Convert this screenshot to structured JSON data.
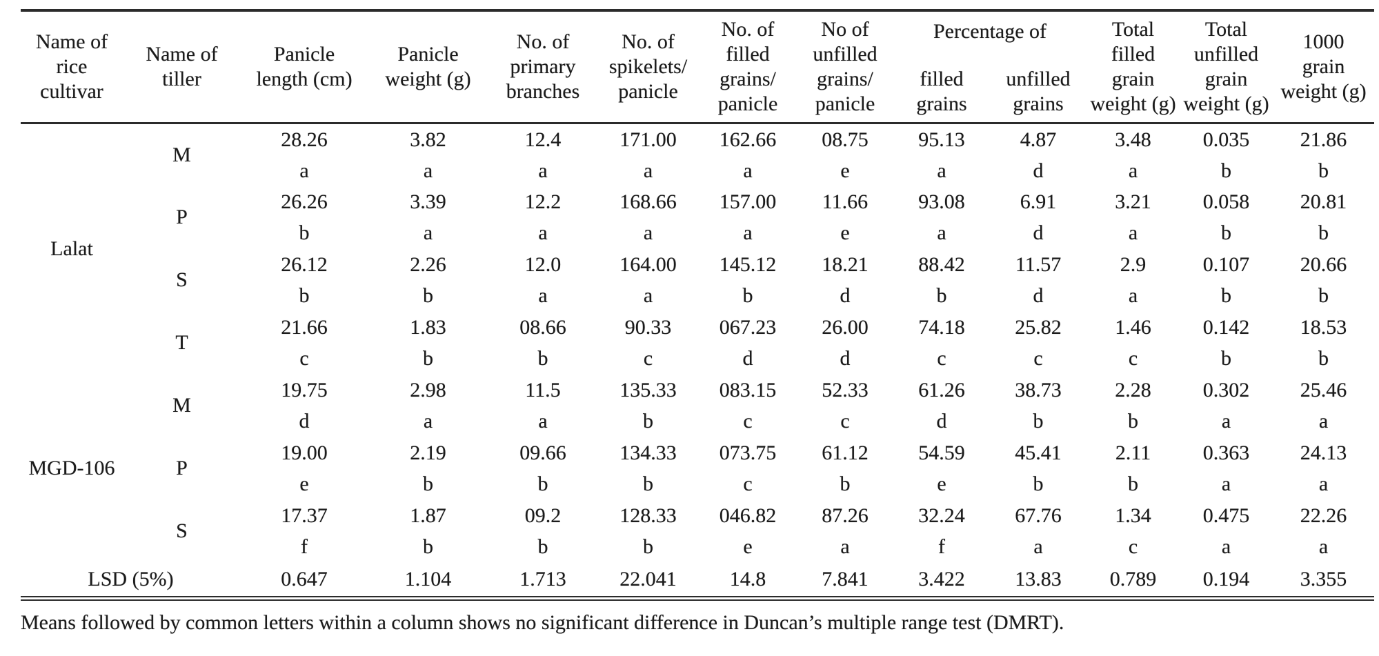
{
  "page": {
    "background_color": "#ffffff",
    "text_color": "#1b1b1b",
    "rule_color": "#2b2b2b"
  },
  "table": {
    "headers": [
      "Name of\nrice\ncultivar",
      "Name of\ntiller",
      "Panicle\nlength (cm)",
      "Panicle\nweight (g)",
      "No. of\nprimary\nbranches",
      "No. of\nspikelets/\npanicle",
      "No. of\nfilled\ngrains/\npanicle",
      "No of\nunfilled\ngrains/\npanicle"
    ],
    "group_header": {
      "label": "Percentage of",
      "subs": [
        "filled\ngrains",
        "unfilled\ngrains"
      ]
    },
    "tail_headers": [
      "Total\nfilled\ngrain\nweight (g)",
      "Total\nunfilled\ngrain\nweight (g)",
      "1000\ngrain\nweight (g)"
    ],
    "groups": [
      {
        "cultivar": "Lalat",
        "rows": [
          {
            "tiller": "M",
            "cells": [
              {
                "v": "28.26",
                "l": "a"
              },
              {
                "v": "3.82",
                "l": "a"
              },
              {
                "v": "12.4",
                "l": "a"
              },
              {
                "v": "171.00",
                "l": "a"
              },
              {
                "v": "162.66",
                "l": "a"
              },
              {
                "v": "08.75",
                "l": "e"
              },
              {
                "v": "95.13",
                "l": "a"
              },
              {
                "v": "4.87",
                "l": "d"
              },
              {
                "v": "3.48",
                "l": "a"
              },
              {
                "v": "0.035",
                "l": "b"
              },
              {
                "v": "21.86",
                "l": "b"
              }
            ]
          },
          {
            "tiller": "P",
            "cells": [
              {
                "v": "26.26",
                "l": "b"
              },
              {
                "v": "3.39",
                "l": "a"
              },
              {
                "v": "12.2",
                "l": "a"
              },
              {
                "v": "168.66",
                "l": "a"
              },
              {
                "v": "157.00",
                "l": "a"
              },
              {
                "v": "11.66",
                "l": "e"
              },
              {
                "v": "93.08",
                "l": "a"
              },
              {
                "v": "6.91",
                "l": "d"
              },
              {
                "v": "3.21",
                "l": "a"
              },
              {
                "v": "0.058",
                "l": "b"
              },
              {
                "v": "20.81",
                "l": "b"
              }
            ]
          },
          {
            "tiller": "S",
            "cells": [
              {
                "v": "26.12",
                "l": "b"
              },
              {
                "v": "2.26",
                "l": "b"
              },
              {
                "v": "12.0",
                "l": "a"
              },
              {
                "v": "164.00",
                "l": "a"
              },
              {
                "v": "145.12",
                "l": "b"
              },
              {
                "v": "18.21",
                "l": "d"
              },
              {
                "v": "88.42",
                "l": "b"
              },
              {
                "v": "11.57",
                "l": "d"
              },
              {
                "v": "2.9",
                "l": "a"
              },
              {
                "v": "0.107",
                "l": "b"
              },
              {
                "v": "20.66",
                "l": "b"
              }
            ]
          },
          {
            "tiller": "T",
            "cells": [
              {
                "v": "21.66",
                "l": "c"
              },
              {
                "v": "1.83",
                "l": "b"
              },
              {
                "v": "08.66",
                "l": "b"
              },
              {
                "v": "90.33",
                "l": "c"
              },
              {
                "v": "067.23",
                "l": "d"
              },
              {
                "v": "26.00",
                "l": "d"
              },
              {
                "v": "74.18",
                "l": "c"
              },
              {
                "v": "25.82",
                "l": "c"
              },
              {
                "v": "1.46",
                "l": "c"
              },
              {
                "v": "0.142",
                "l": "b"
              },
              {
                "v": "18.53",
                "l": "b"
              }
            ]
          }
        ]
      },
      {
        "cultivar": "MGD-106",
        "rows": [
          {
            "tiller": "M",
            "cells": [
              {
                "v": "19.75",
                "l": "d"
              },
              {
                "v": "2.98",
                "l": "a"
              },
              {
                "v": "11.5",
                "l": "a"
              },
              {
                "v": "135.33",
                "l": "b"
              },
              {
                "v": "083.15",
                "l": "c"
              },
              {
                "v": "52.33",
                "l": "c"
              },
              {
                "v": "61.26",
                "l": "d"
              },
              {
                "v": "38.73",
                "l": "b"
              },
              {
                "v": "2.28",
                "l": "b"
              },
              {
                "v": "0.302",
                "l": "a"
              },
              {
                "v": "25.46",
                "l": "a"
              }
            ]
          },
          {
            "tiller": "P",
            "cells": [
              {
                "v": "19.00",
                "l": "e"
              },
              {
                "v": "2.19",
                "l": "b"
              },
              {
                "v": "09.66",
                "l": "b"
              },
              {
                "v": "134.33",
                "l": "b"
              },
              {
                "v": "073.75",
                "l": "c"
              },
              {
                "v": "61.12",
                "l": "b"
              },
              {
                "v": "54.59",
                "l": "e"
              },
              {
                "v": "45.41",
                "l": "b"
              },
              {
                "v": "2.11",
                "l": "b"
              },
              {
                "v": "0.363",
                "l": "a"
              },
              {
                "v": "24.13",
                "l": "a"
              }
            ]
          },
          {
            "tiller": "S",
            "cells": [
              {
                "v": "17.37",
                "l": "f"
              },
              {
                "v": "1.87",
                "l": "b"
              },
              {
                "v": "09.2",
                "l": "b"
              },
              {
                "v": "128.33",
                "l": "b"
              },
              {
                "v": "046.82",
                "l": "e"
              },
              {
                "v": "87.26",
                "l": "a"
              },
              {
                "v": "32.24",
                "l": "f"
              },
              {
                "v": "67.76",
                "l": "a"
              },
              {
                "v": "1.34",
                "l": "c"
              },
              {
                "v": "0.475",
                "l": "a"
              },
              {
                "v": "22.26",
                "l": "a"
              }
            ]
          }
        ]
      }
    ],
    "lsd": {
      "label": "LSD (5%)",
      "values": [
        "0.647",
        "1.104",
        "1.713",
        "22.041",
        "14.8",
        "7.841",
        "3.422",
        "13.83",
        "0.789",
        "0.194",
        "3.355"
      ]
    }
  },
  "footnote": "Means followed by common letters within a column shows no significant difference in Duncan’s multiple range test (DMRT)."
}
